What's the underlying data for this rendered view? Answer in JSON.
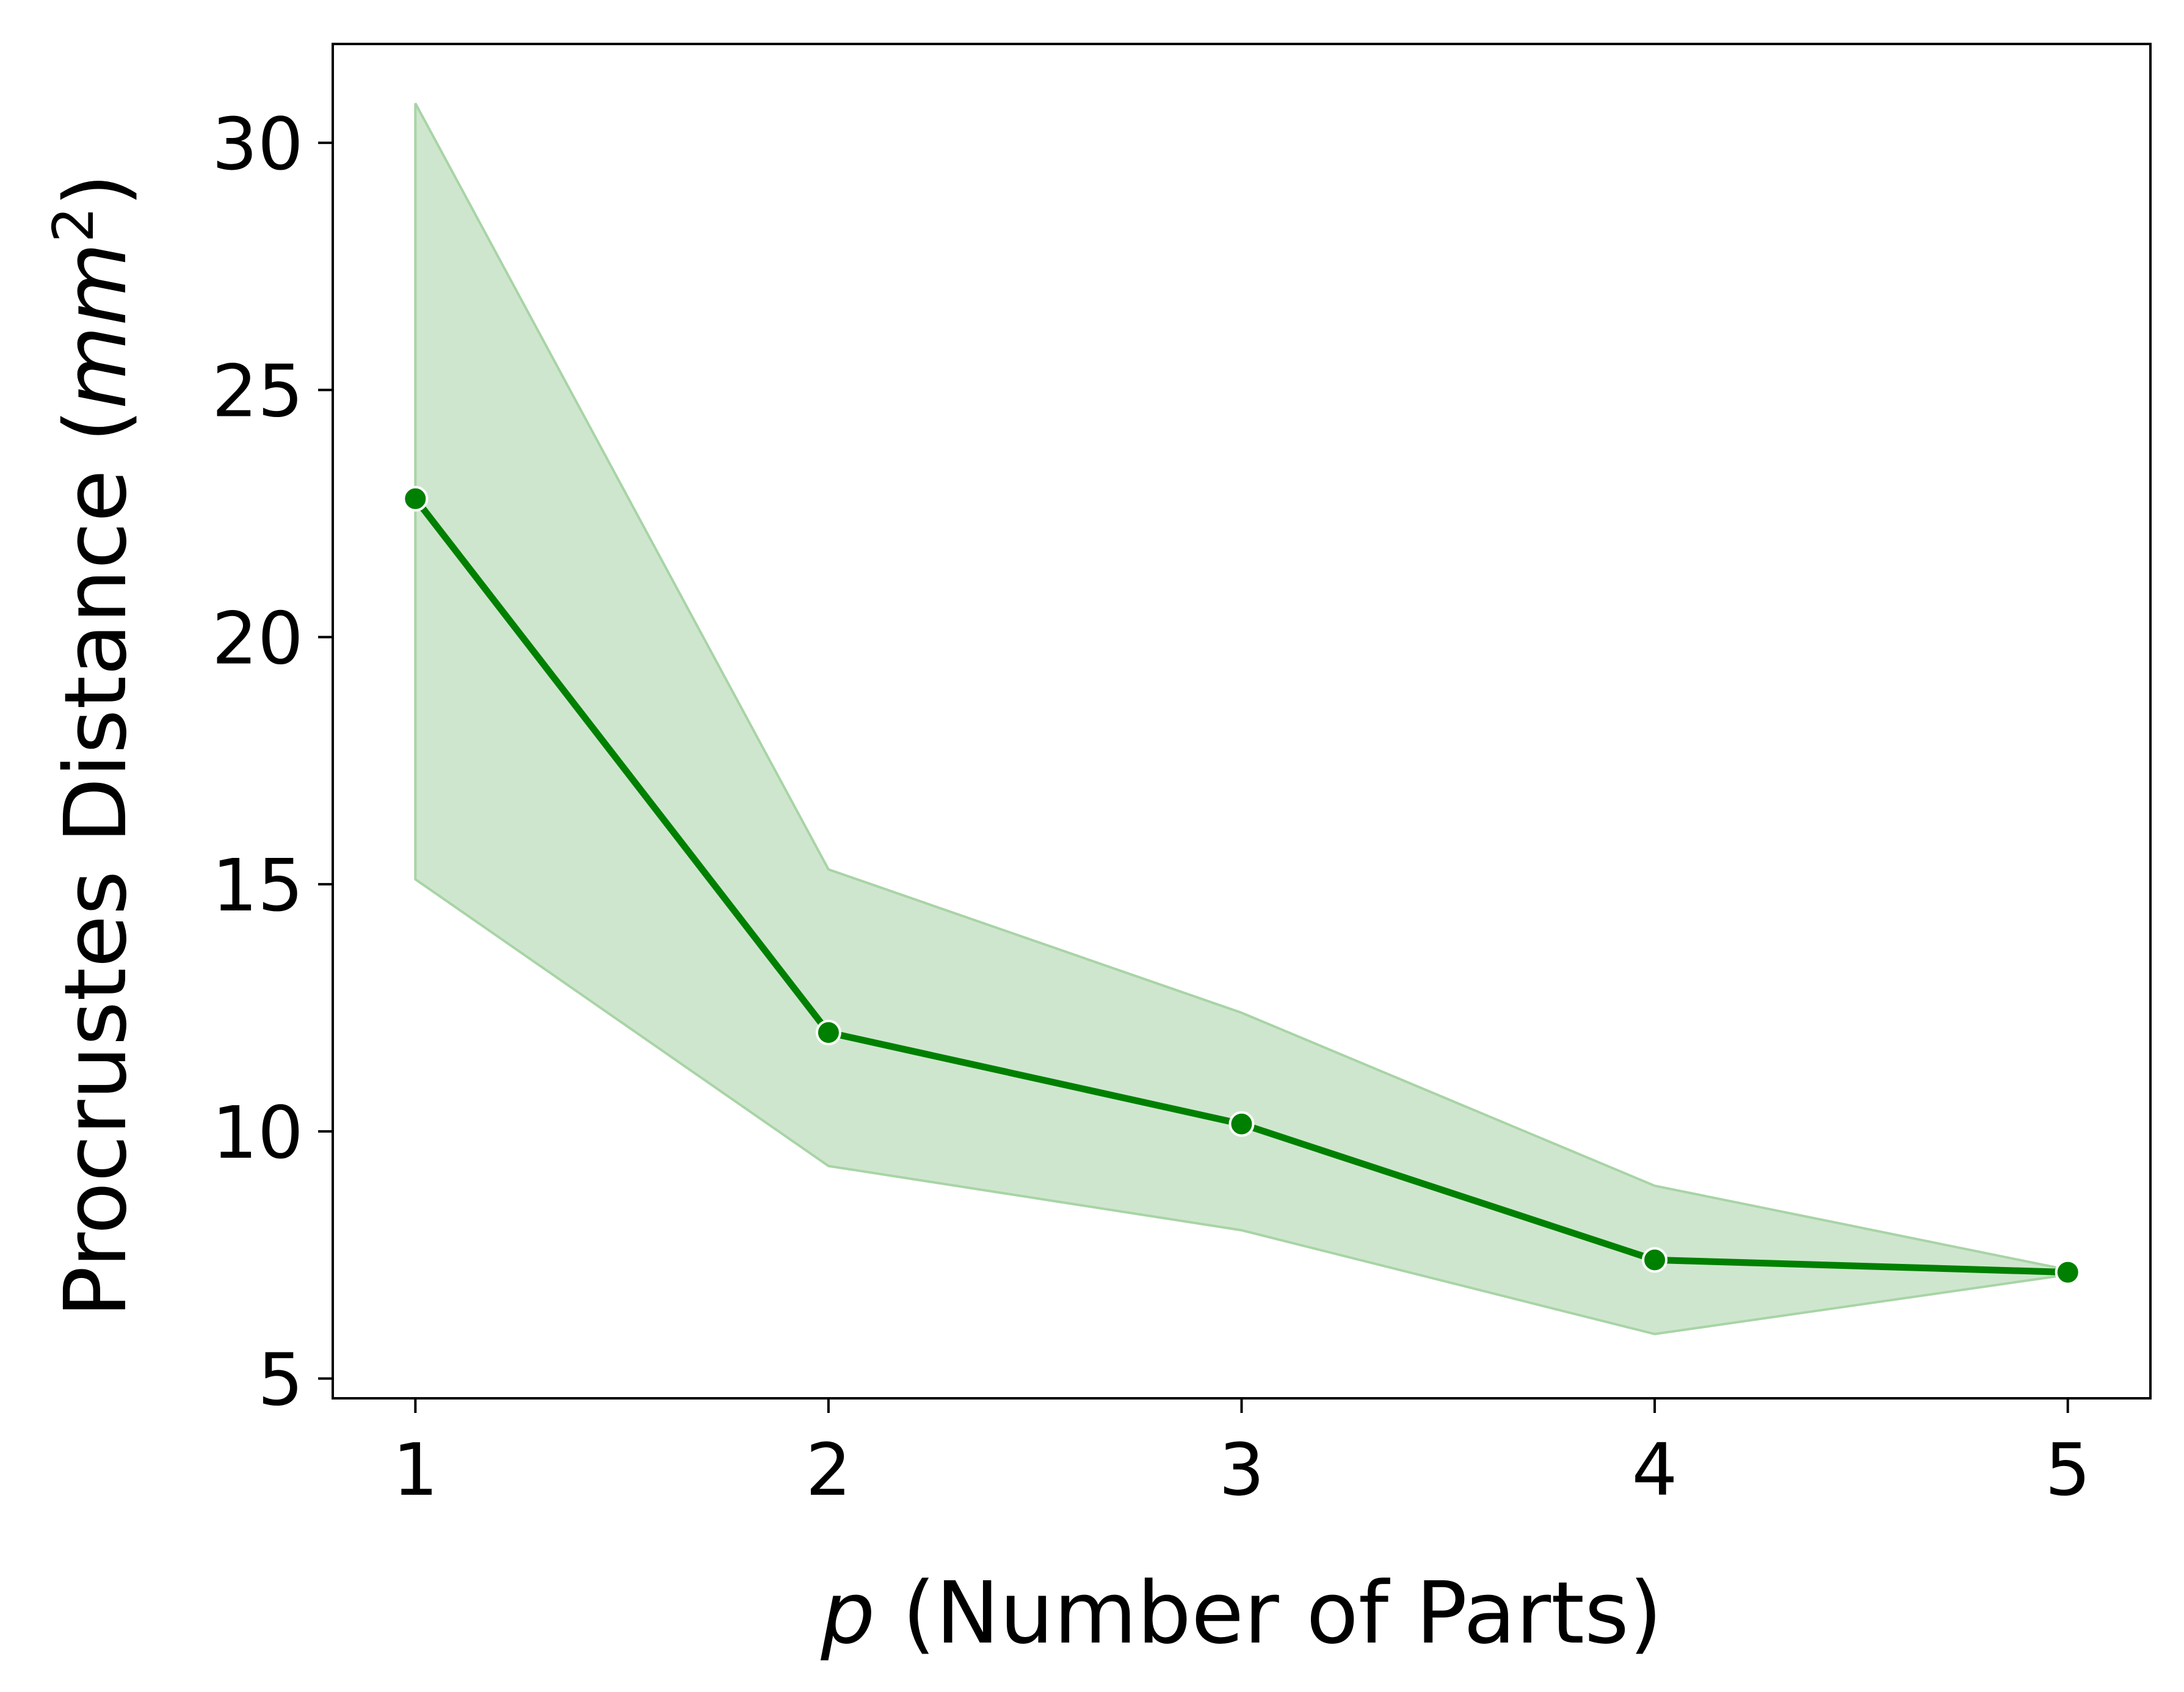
{
  "chart_data": {
    "type": "line",
    "xlabel": {
      "var": "p",
      "rest": " (Number of Parts)"
    },
    "ylabel": {
      "prefix": "Procrustes Distance (",
      "var": "mm",
      "sup": "2",
      "suffix": ")"
    },
    "x": [
      1,
      2,
      3,
      4,
      5
    ],
    "series": [
      {
        "values": [
          22.8,
          12.0,
          10.15,
          7.4,
          7.15
        ],
        "band_upper": [
          30.8,
          15.3,
          12.4,
          8.9,
          7.2
        ],
        "band_lower": [
          15.1,
          9.3,
          8.0,
          5.9,
          7.1
        ]
      }
    ],
    "xlim": [
      0.8,
      5.2
    ],
    "ylim": [
      4.6,
      32.0
    ],
    "xticks": [
      "1",
      "2",
      "3",
      "4",
      "5"
    ],
    "yticks": [
      "5",
      "10",
      "15",
      "20",
      "25",
      "30"
    ],
    "grid": false,
    "colors": {
      "line": "#008000",
      "band": "#cfe6ce",
      "band_edge": "#a8d4a6",
      "marker_edge": "#ffffff"
    }
  }
}
